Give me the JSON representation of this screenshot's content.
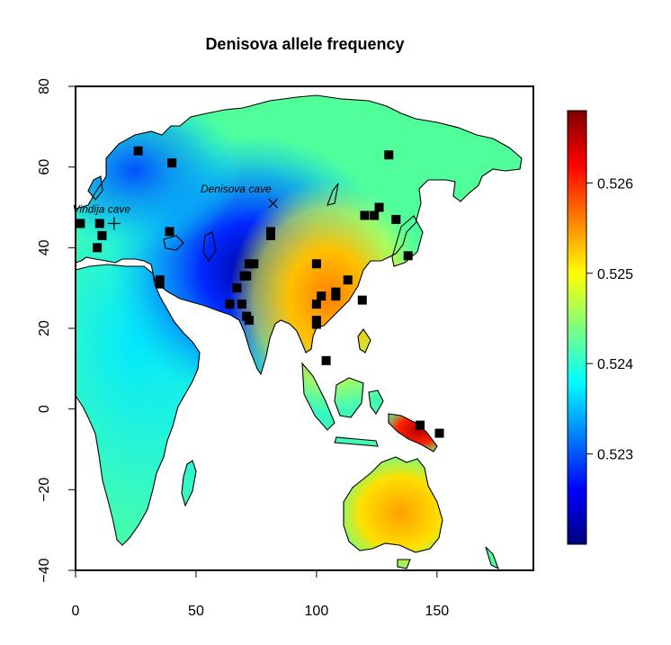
{
  "title": "Denisova allele frequency",
  "x_axis": {
    "range": [
      0,
      190
    ],
    "ticks": [
      {
        "value": 0,
        "label": "0"
      },
      {
        "value": 50,
        "label": "50"
      },
      {
        "value": 100,
        "label": "100"
      },
      {
        "value": 150,
        "label": "150"
      }
    ]
  },
  "y_axis": {
    "range": [
      -40,
      80
    ],
    "ticks": [
      {
        "value": -40,
        "label": "−40"
      },
      {
        "value": -20,
        "label": "−20"
      },
      {
        "value": 0,
        "label": "0"
      },
      {
        "value": 20,
        "label": "20"
      },
      {
        "value": 40,
        "label": "40"
      },
      {
        "value": 60,
        "label": "60"
      },
      {
        "value": 80,
        "label": "80"
      }
    ]
  },
  "colorbar": {
    "range": [
      0.522,
      0.5268
    ],
    "ticks": [
      {
        "value": 0.523,
        "label": "0.523"
      },
      {
        "value": 0.524,
        "label": "0.524"
      },
      {
        "value": 0.525,
        "label": "0.525"
      },
      {
        "value": 0.526,
        "label": "0.526"
      }
    ],
    "colors": [
      "#00007f",
      "#0000ff",
      "#007fff",
      "#00ffff",
      "#7fff7f",
      "#ffff00",
      "#ff7f00",
      "#ff0000",
      "#7f0000"
    ]
  },
  "annotations": [
    {
      "label": "Vindija cave",
      "marker": "plus",
      "lon": 16,
      "lat": 46
    },
    {
      "label": "Denisova cave",
      "marker": "cross",
      "lon": 82,
      "lat": 51
    }
  ],
  "chart_data": {
    "type": "map",
    "title": "Denisova allele frequency",
    "xlim": [
      0,
      190
    ],
    "ylim": [
      -40,
      80
    ],
    "sample_sites": [
      [
        2,
        46
      ],
      [
        10,
        46
      ],
      [
        9,
        40
      ],
      [
        11,
        43
      ],
      [
        26,
        64
      ],
      [
        40,
        61
      ],
      [
        39,
        44
      ],
      [
        35,
        32
      ],
      [
        35,
        31
      ],
      [
        64,
        26
      ],
      [
        67,
        30
      ],
      [
        69,
        26
      ],
      [
        70,
        33
      ],
      [
        71,
        33
      ],
      [
        72,
        36
      ],
      [
        74,
        36
      ],
      [
        71,
        23
      ],
      [
        72,
        22
      ],
      [
        81,
        44
      ],
      [
        81,
        43
      ],
      [
        100,
        36
      ],
      [
        100,
        26
      ],
      [
        100,
        22
      ],
      [
        100,
        21
      ],
      [
        102,
        28
      ],
      [
        104,
        12
      ],
      [
        108,
        28
      ],
      [
        108,
        29
      ],
      [
        113,
        32
      ],
      [
        119,
        27
      ],
      [
        120,
        48
      ],
      [
        124,
        48
      ],
      [
        126,
        50
      ],
      [
        130,
        63
      ],
      [
        133,
        47
      ],
      [
        138,
        38
      ],
      [
        143,
        -4
      ],
      [
        151,
        -6
      ]
    ]
  }
}
